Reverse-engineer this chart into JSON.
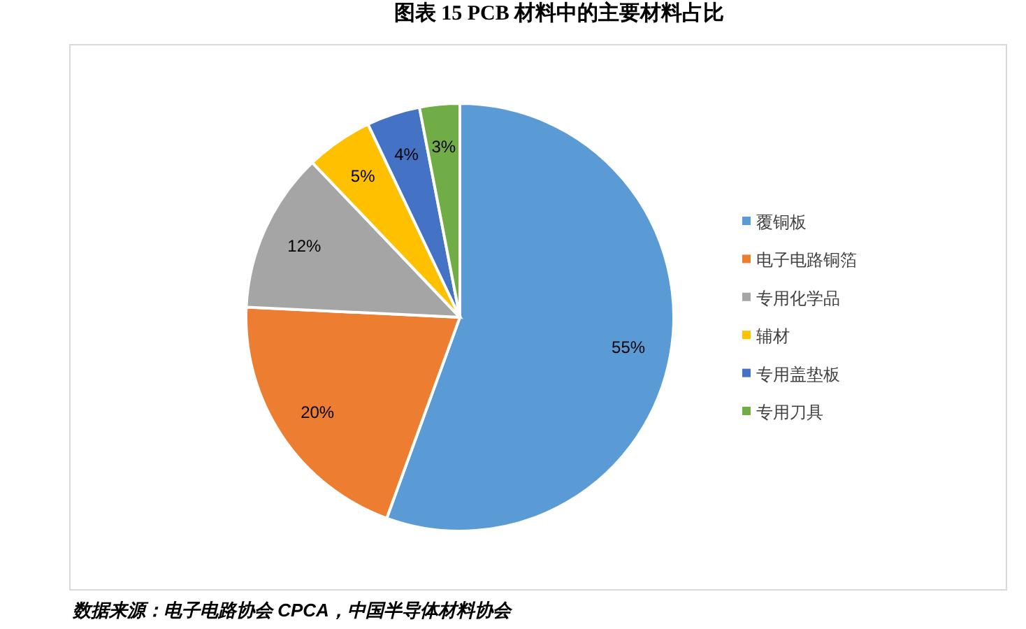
{
  "chart_data": {
    "type": "pie",
    "title": "图表  15 PCB 材料中的主要材料占比",
    "categories": [
      "覆铜板",
      "电子电路铜箔",
      "专用化学品",
      "辅材",
      "专用盖垫板",
      "专用刀具"
    ],
    "values": [
      55,
      20,
      12,
      5,
      4,
      3
    ],
    "colors": [
      "#5b9bd5",
      "#ed7d31",
      "#a5a5a5",
      "#ffc000",
      "#4472c4",
      "#70ad47"
    ],
    "value_labels": [
      "55%",
      "20%",
      "12%",
      "5%",
      "4%",
      "3%"
    ],
    "legend": "right",
    "annotations": [
      "数据来源：电子电路协会 CPCA，中国半导体材料协会"
    ]
  }
}
